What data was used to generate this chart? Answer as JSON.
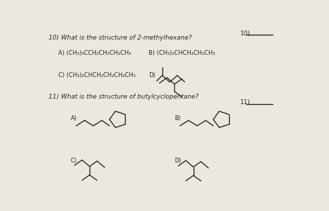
{
  "page_color": "#ede8df",
  "text_color": "#2a2520",
  "line_color": "#2a2520",
  "title_q10": "10) What is the structure of 2-methylhexane?",
  "title_q11": "11) What is the structure of butylcyclopentane?",
  "answer_label_10": "10)",
  "answer_label_11": "11)",
  "opt_A_q10": "A) (CH₃)₃CCH₂CH₂CH₂CH₃",
  "opt_B_q10": "B) (CH₃)₂CHCH₂CH₂CH₃",
  "opt_C_q10": "C) (CH₃)₂CHCH₂CH₂CH₂CH₃",
  "opt_D_label": "D)",
  "opt_A_q11": "A)",
  "opt_B_q11": "B)",
  "opt_C_q11": "C)",
  "opt_D_q11": "D)",
  "font_q": 6.5,
  "font_opt": 6.0,
  "font_ans": 6.5
}
